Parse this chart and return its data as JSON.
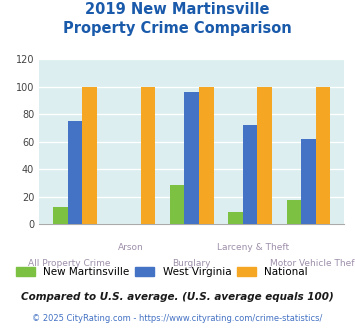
{
  "title_line1": "2019 New Martinsville",
  "title_line2": "Property Crime Comparison",
  "categories": [
    "All Property Crime",
    "Arson",
    "Burglary",
    "Larceny & Theft",
    "Motor Vehicle Theft"
  ],
  "new_martinsville": [
    13,
    0,
    29,
    9,
    18
  ],
  "west_virginia": [
    75,
    0,
    96,
    72,
    62
  ],
  "national": [
    100,
    100,
    100,
    100,
    100
  ],
  "color_nm": "#7dc142",
  "color_wv": "#4472c4",
  "color_nat": "#f5a623",
  "ylim": [
    0,
    120
  ],
  "yticks": [
    0,
    20,
    40,
    60,
    80,
    100,
    120
  ],
  "bg_color": "#ddeef0",
  "title_color": "#1a5aab",
  "xlabel_color": "#9e8faa",
  "legend_label_nm": "New Martinsville",
  "legend_label_wv": "West Virginia",
  "legend_label_nat": "National",
  "footnote1": "Compared to U.S. average. (U.S. average equals 100)",
  "footnote2": "© 2025 CityRating.com - https://www.cityrating.com/crime-statistics/",
  "footnote1_color": "#1a1a1a",
  "footnote2_color": "#4472c4"
}
